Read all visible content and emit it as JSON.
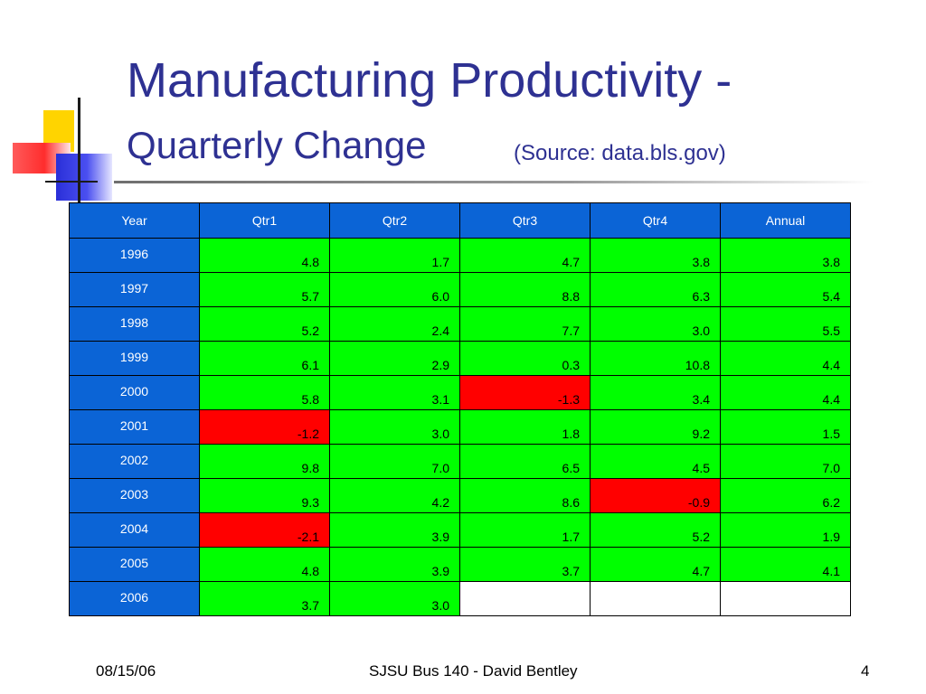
{
  "title": {
    "line1": "Manufacturing Productivity -",
    "line2": "Quarterly Change",
    "source": "(Source: data.bls.gov)"
  },
  "table": {
    "headers": [
      "Year",
      "Qtr1",
      "Qtr2",
      "Qtr3",
      "Qtr4",
      "Annual"
    ],
    "rows": [
      {
        "year": "1996",
        "values": [
          "4.8",
          "1.7",
          "4.7",
          "3.8",
          "3.8"
        ]
      },
      {
        "year": "1997",
        "values": [
          "5.7",
          "6.0",
          "8.8",
          "6.3",
          "5.4"
        ]
      },
      {
        "year": "1998",
        "values": [
          "5.2",
          "2.4",
          "7.7",
          "3.0",
          "5.5"
        ]
      },
      {
        "year": "1999",
        "values": [
          "6.1",
          "2.9",
          "0.3",
          "10.8",
          "4.4"
        ]
      },
      {
        "year": "2000",
        "values": [
          "5.8",
          "3.1",
          "-1.3",
          "3.4",
          "4.4"
        ]
      },
      {
        "year": "2001",
        "values": [
          "-1.2",
          "3.0",
          "1.8",
          "9.2",
          "1.5"
        ]
      },
      {
        "year": "2002",
        "values": [
          "9.8",
          "7.0",
          "6.5",
          "4.5",
          "7.0"
        ]
      },
      {
        "year": "2003",
        "values": [
          "9.3",
          "4.2",
          "8.6",
          "-0.9",
          "6.2"
        ]
      },
      {
        "year": "2004",
        "values": [
          "-2.1",
          "3.9",
          "1.7",
          "5.2",
          "1.9"
        ]
      },
      {
        "year": "2005",
        "values": [
          "4.8",
          "3.9",
          "3.7",
          "4.7",
          "4.1"
        ]
      },
      {
        "year": "2006",
        "values": [
          "3.7",
          "3.0",
          "",
          "",
          ""
        ]
      }
    ]
  },
  "colors": {
    "header_bg": "#0b64d6",
    "positive_bg": "#00ff00",
    "negative_bg": "#ff0000",
    "title_color": "#2e3192"
  },
  "footer": {
    "date": "08/15/06",
    "course": "SJSU Bus 140 - David Bentley",
    "page": "4"
  }
}
